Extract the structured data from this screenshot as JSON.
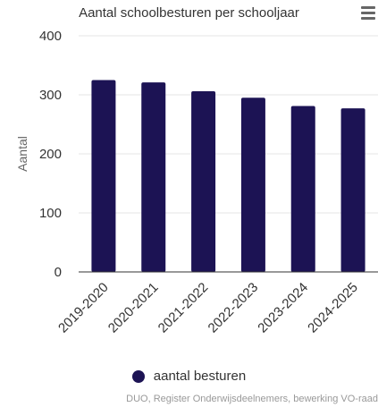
{
  "menu": {
    "icon": "hamburger-menu-icon"
  },
  "credits": "DUO, Register Onderwijsdeelnemers, bewerking VO-raad",
  "chart_data": {
    "type": "bar",
    "title": "Aantal schoolbesturen per schooljaar",
    "ylabel": "Aantal",
    "xlabel": "",
    "ylim": [
      0,
      400
    ],
    "yticks": [
      0,
      100,
      200,
      300,
      400
    ],
    "categories": [
      "2019-2020",
      "2020-2021",
      "2021-2022",
      "2022-2023",
      "2023-2024",
      "2024-2025"
    ],
    "series": [
      {
        "name": "aantal besturen",
        "color": "#1c1354",
        "values": [
          325,
          321,
          306,
          295,
          281,
          277
        ]
      }
    ],
    "legend": "bottom-center",
    "grid": true
  }
}
